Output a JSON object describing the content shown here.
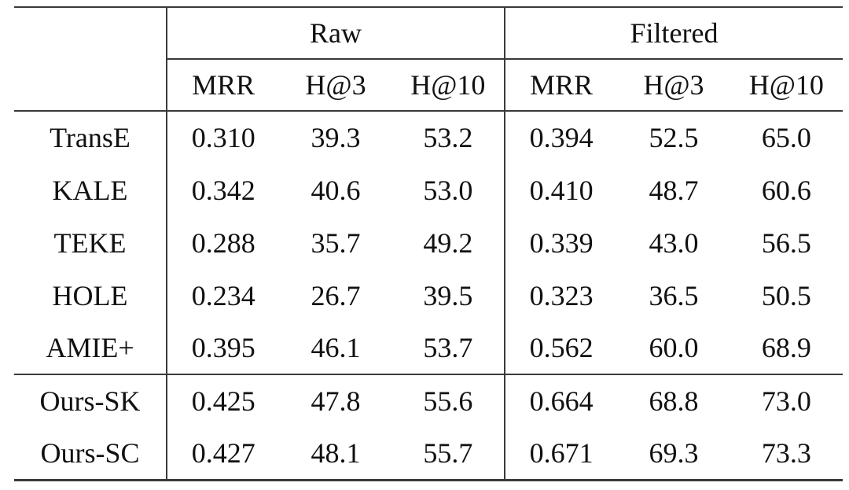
{
  "table": {
    "groups": [
      {
        "label": "Raw"
      },
      {
        "label": "Filtered"
      }
    ],
    "metric_headers": [
      "MRR",
      "H@3",
      "H@10",
      "MRR",
      "H@3",
      "H@10"
    ],
    "rows": [
      {
        "method": "TransE",
        "values": [
          "0.310",
          "39.3",
          "53.2",
          "0.394",
          "52.5",
          "65.0"
        ],
        "bold_values": false
      },
      {
        "method": "KALE",
        "values": [
          "0.342",
          "40.6",
          "53.0",
          "0.410",
          "48.7",
          "60.6"
        ],
        "bold_values": false
      },
      {
        "method": "TEKE",
        "values": [
          "0.288",
          "35.7",
          "49.2",
          "0.339",
          "43.0",
          "56.5"
        ],
        "bold_values": false
      },
      {
        "method": "HOLE",
        "values": [
          "0.234",
          "26.7",
          "39.5",
          "0.323",
          "36.5",
          "50.5"
        ],
        "bold_values": false
      },
      {
        "method": "AMIE+",
        "values": [
          "0.395",
          "46.1",
          "53.7",
          "0.562",
          "60.0",
          "68.9"
        ],
        "bold_values": false
      },
      {
        "method": "Ours-SK",
        "values": [
          "0.425",
          "47.8",
          "55.6",
          "0.664",
          "68.8",
          "73.0"
        ],
        "bold_values": false
      },
      {
        "method": "Ours-SC",
        "values": [
          "0.427",
          "48.1",
          "55.7",
          "0.671",
          "69.3",
          "73.3"
        ],
        "bold_values": true
      }
    ],
    "colors": {
      "text": "#111111",
      "rule": "#3a3a3a",
      "background": "#ffffff"
    }
  }
}
